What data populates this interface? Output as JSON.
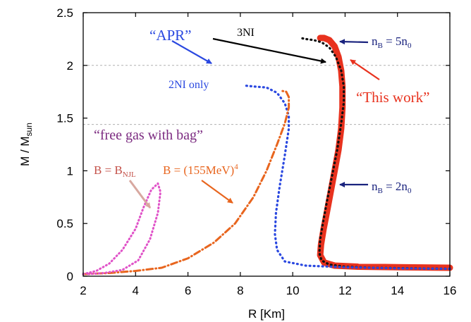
{
  "chart_data": {
    "type": "line",
    "xlabel": "R [Km]",
    "ylabel_main": "M / M",
    "ylabel_sub": "sun",
    "xlim": [
      2,
      16
    ],
    "ylim": [
      0,
      2.5
    ],
    "xticks": [
      2,
      4,
      6,
      8,
      10,
      12,
      14,
      16
    ],
    "yticks": [
      0,
      0.5,
      1,
      1.5,
      2,
      2.5
    ],
    "ytick_labels": [
      "0",
      "0.5",
      "1",
      "1.5",
      "2",
      "2.5"
    ],
    "reference_lines": [
      2.0,
      1.44
    ],
    "series": [
      {
        "key": "this_work",
        "color": "#e8321e",
        "style": "solid",
        "points": [
          [
            16.0,
            0.08
          ],
          [
            14.0,
            0.085
          ],
          [
            12.5,
            0.09
          ],
          [
            11.6,
            0.1
          ],
          [
            11.2,
            0.13
          ],
          [
            11.05,
            0.2
          ],
          [
            11.08,
            0.3
          ],
          [
            11.18,
            0.45
          ],
          [
            11.3,
            0.6
          ],
          [
            11.45,
            0.8
          ],
          [
            11.6,
            1.0
          ],
          [
            11.75,
            1.2
          ],
          [
            11.85,
            1.4
          ],
          [
            11.9,
            1.6
          ],
          [
            11.9,
            1.8
          ],
          [
            11.85,
            1.95
          ],
          [
            11.75,
            2.08
          ],
          [
            11.6,
            2.18
          ],
          [
            11.4,
            2.24
          ],
          [
            11.2,
            2.26
          ],
          [
            11.05,
            2.26
          ]
        ]
      },
      {
        "key": "apr",
        "color": "#111111",
        "style": "dotted",
        "points": [
          [
            16.0,
            0.07
          ],
          [
            14.5,
            0.075
          ],
          [
            13.0,
            0.08
          ],
          [
            12.0,
            0.09
          ],
          [
            11.4,
            0.11
          ],
          [
            11.1,
            0.15
          ],
          [
            11.02,
            0.22
          ],
          [
            11.05,
            0.35
          ],
          [
            11.15,
            0.5
          ],
          [
            11.3,
            0.7
          ],
          [
            11.5,
            0.95
          ],
          [
            11.7,
            1.2
          ],
          [
            11.85,
            1.45
          ],
          [
            11.95,
            1.65
          ],
          [
            11.95,
            1.8
          ],
          [
            11.85,
            1.95
          ],
          [
            11.65,
            2.08
          ],
          [
            11.4,
            2.17
          ],
          [
            11.1,
            2.22
          ],
          [
            10.8,
            2.24
          ],
          [
            10.5,
            2.25
          ],
          [
            10.3,
            2.26
          ]
        ]
      },
      {
        "key": "2ni",
        "color": "#2a48e0",
        "style": "dotted",
        "points": [
          [
            16.0,
            0.07
          ],
          [
            14.0,
            0.075
          ],
          [
            12.0,
            0.085
          ],
          [
            10.5,
            0.1
          ],
          [
            9.7,
            0.14
          ],
          [
            9.4,
            0.25
          ],
          [
            9.32,
            0.4
          ],
          [
            9.36,
            0.6
          ],
          [
            9.5,
            0.85
          ],
          [
            9.7,
            1.15
          ],
          [
            9.85,
            1.4
          ],
          [
            9.85,
            1.52
          ],
          [
            9.7,
            1.64
          ],
          [
            9.4,
            1.74
          ],
          [
            9.0,
            1.79
          ],
          [
            8.5,
            1.8
          ],
          [
            8.1,
            1.81
          ]
        ]
      },
      {
        "key": "bag_155",
        "color": "#e8651e",
        "style": "dashdot",
        "points": [
          [
            2.0,
            0.02
          ],
          [
            3.0,
            0.03
          ],
          [
            4.0,
            0.05
          ],
          [
            5.0,
            0.08
          ],
          [
            6.0,
            0.17
          ],
          [
            7.0,
            0.32
          ],
          [
            7.8,
            0.5
          ],
          [
            8.5,
            0.75
          ],
          [
            9.0,
            1.0
          ],
          [
            9.4,
            1.25
          ],
          [
            9.7,
            1.45
          ],
          [
            9.85,
            1.6
          ],
          [
            9.85,
            1.7
          ],
          [
            9.75,
            1.75
          ],
          [
            9.55,
            1.76
          ]
        ]
      },
      {
        "key": "bag_njl",
        "color": "#e052c8",
        "style": "dotted",
        "points": [
          [
            2.0,
            0.02
          ],
          [
            2.5,
            0.05
          ],
          [
            3.0,
            0.12
          ],
          [
            3.5,
            0.25
          ],
          [
            4.0,
            0.45
          ],
          [
            4.3,
            0.65
          ],
          [
            4.6,
            0.82
          ],
          [
            4.85,
            0.88
          ],
          [
            4.95,
            0.8
          ],
          [
            4.85,
            0.6
          ],
          [
            4.55,
            0.35
          ],
          [
            4.1,
            0.15
          ],
          [
            3.5,
            0.06
          ],
          [
            2.8,
            0.03
          ],
          [
            2.2,
            0.02
          ]
        ]
      }
    ],
    "annotations": {
      "apr_label": "“APR”",
      "ni3_label": "3NI",
      "ni2_label": "2NI only",
      "this_work_label": "“This work”",
      "free_gas_label": "“free gas with bag”",
      "b_njl_prefix": "B = B",
      "b_njl_sub": "NJL",
      "b_155_prefix": "B = (155MeV)",
      "b_155_sup": "4",
      "nb5_prefix": "n",
      "nb5_sub1": "B",
      "nb5_mid": " = 5n",
      "nb5_sub2": "0",
      "nb2_prefix": "n",
      "nb2_sub1": "B",
      "nb2_mid": " = 2n",
      "nb2_sub2": "0"
    },
    "colors": {
      "navy": "#1a237e",
      "blue": "#2a48e0",
      "red": "#e8321e",
      "orange": "#e8651e",
      "purple": "#7b2a80",
      "rose": "#c4524a",
      "pink_arrow": "#d8a8a0",
      "black": "#000000"
    }
  }
}
